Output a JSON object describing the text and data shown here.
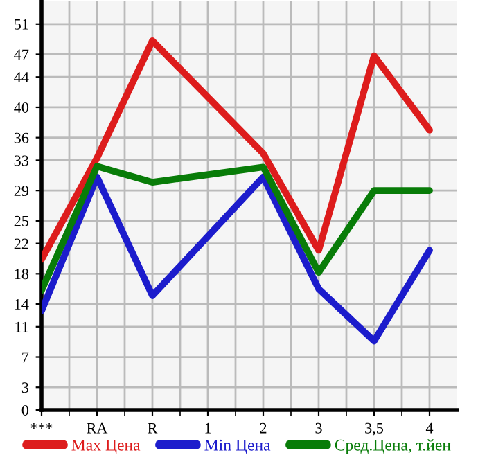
{
  "chart_data": {
    "type": "line",
    "categories": [
      "***",
      "RA",
      "R",
      "1",
      "2",
      "3",
      "3,5",
      "4"
    ],
    "series": [
      {
        "name": "Max Цена",
        "color": "#dd1c1c",
        "values": [
          19.9,
          33.3,
          48.8,
          null,
          33.9,
          21.1,
          46.8,
          37.0
        ]
      },
      {
        "name": "Min Цена",
        "color": "#1c1ccc",
        "values": [
          13.1,
          30.8,
          15.1,
          null,
          30.8,
          16.0,
          9.1,
          21.1
        ]
      },
      {
        "name": "Сред.Цена, т.йен",
        "color": "#087c08",
        "values": [
          15.8,
          32.2,
          30.1,
          null,
          32.1,
          18.2,
          29.0,
          29.0
        ]
      }
    ],
    "ylim": [
      0,
      54
    ],
    "yticks": [
      0,
      3,
      7,
      11,
      14,
      18,
      22,
      25,
      29,
      33,
      36,
      40,
      44,
      47,
      51
    ],
    "grid": true,
    "legend": "bottom",
    "marker": "none",
    "line_style": "solid"
  }
}
